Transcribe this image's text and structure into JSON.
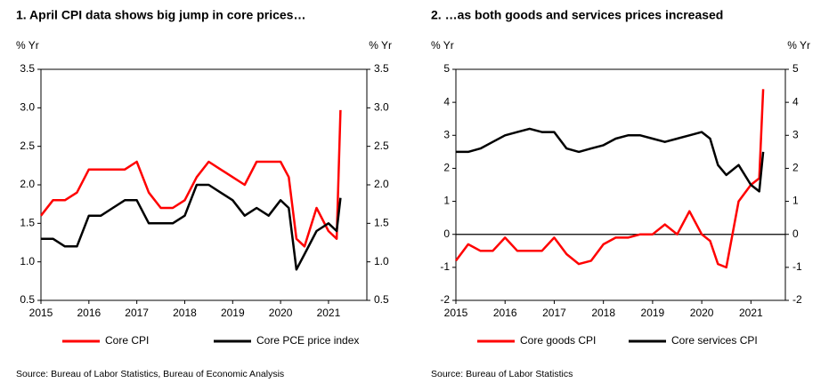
{
  "chart_data": [
    {
      "type": "line",
      "title": "1. April CPI data shows big jump in core prices…",
      "ylabel": "% Yr",
      "y2label": "% Yr",
      "x": [
        2015,
        2015.25,
        2015.5,
        2015.75,
        2016,
        2016.25,
        2016.5,
        2016.75,
        2017,
        2017.25,
        2017.5,
        2017.75,
        2018,
        2018.25,
        2018.5,
        2018.75,
        2019,
        2019.25,
        2019.5,
        2019.75,
        2020,
        2020.17,
        2020.33,
        2020.5,
        2020.75,
        2021,
        2021.17,
        2021.25
      ],
      "series": [
        {
          "name": "Core CPI",
          "color": "#ff0000",
          "values": [
            1.6,
            1.8,
            1.8,
            1.9,
            2.2,
            2.2,
            2.2,
            2.2,
            2.3,
            1.9,
            1.7,
            1.7,
            1.8,
            2.1,
            2.3,
            2.2,
            2.1,
            2.0,
            2.3,
            2.3,
            2.3,
            2.1,
            1.3,
            1.2,
            1.7,
            1.4,
            1.3,
            2.97
          ]
        },
        {
          "name": "Core PCE price index",
          "color": "#000000",
          "values": [
            1.3,
            1.3,
            1.2,
            1.2,
            1.6,
            1.6,
            1.7,
            1.8,
            1.8,
            1.5,
            1.5,
            1.5,
            1.6,
            2.0,
            2.0,
            1.9,
            1.8,
            1.6,
            1.7,
            1.6,
            1.8,
            1.7,
            0.9,
            1.1,
            1.4,
            1.5,
            1.4,
            1.83
          ]
        }
      ],
      "xlim": [
        2015,
        2021.8
      ],
      "xticks": [
        2015,
        2016,
        2017,
        2018,
        2019,
        2020,
        2021
      ],
      "ylim": [
        0.5,
        3.5
      ],
      "yticks": [
        {
          "value": 0.5,
          "label": "0.5"
        },
        {
          "value": 1,
          "label": "1.0"
        },
        {
          "value": 1.5,
          "label": "1.5"
        },
        {
          "value": 2,
          "label": "2.0"
        },
        {
          "value": 2.5,
          "label": "2.5"
        },
        {
          "value": 3,
          "label": "3.0"
        },
        {
          "value": 3.5,
          "label": "3.5"
        }
      ],
      "source": "Source: Bureau of Labor Statistics, Bureau of Economic Analysis"
    },
    {
      "type": "line",
      "title": "2. …as both goods and services prices increased",
      "ylabel": "% Yr",
      "y2label": "% Yr",
      "x": [
        2015,
        2015.25,
        2015.5,
        2015.75,
        2016,
        2016.25,
        2016.5,
        2016.75,
        2017,
        2017.25,
        2017.5,
        2017.75,
        2018,
        2018.25,
        2018.5,
        2018.75,
        2019,
        2019.25,
        2019.5,
        2019.75,
        2020,
        2020.17,
        2020.33,
        2020.5,
        2020.75,
        2021,
        2021.17,
        2021.25
      ],
      "series": [
        {
          "name": "Core goods CPI",
          "color": "#ff0000",
          "values": [
            -0.8,
            -0.3,
            -0.5,
            -0.5,
            -0.1,
            -0.5,
            -0.5,
            -0.5,
            -0.1,
            -0.6,
            -0.9,
            -0.8,
            -0.3,
            -0.1,
            -0.1,
            0.0,
            0.0,
            0.3,
            0.0,
            0.7,
            0.0,
            -0.2,
            -0.9,
            -1.0,
            1.0,
            1.5,
            1.7,
            4.4
          ]
        },
        {
          "name": "Core services CPI",
          "color": "#000000",
          "values": [
            2.5,
            2.5,
            2.6,
            2.8,
            3.0,
            3.1,
            3.2,
            3.1,
            3.1,
            2.6,
            2.5,
            2.6,
            2.7,
            2.9,
            3.0,
            3.0,
            2.9,
            2.8,
            2.9,
            3.0,
            3.1,
            2.9,
            2.1,
            1.8,
            2.1,
            1.5,
            1.3,
            2.5
          ]
        }
      ],
      "xlim": [
        2015,
        2021.7
      ],
      "xticks": [
        2015,
        2016,
        2017,
        2018,
        2019,
        2020,
        2021
      ],
      "ylim": [
        -2,
        5
      ],
      "yticks": [
        -2,
        -1,
        0,
        1,
        2,
        3,
        4,
        5
      ],
      "source": "Source: Bureau of Labor Statistics"
    }
  ]
}
